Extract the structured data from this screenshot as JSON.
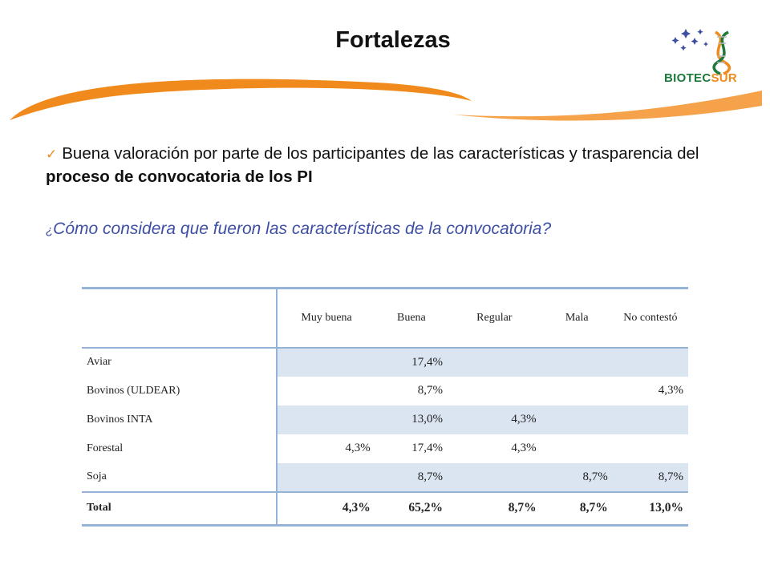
{
  "slide": {
    "title": "Fortalezas",
    "logo_text_part1": "BIOTEC",
    "logo_text_part2": "SUR",
    "bullet_text": "Buena valoración por parte de los participantes de las características y trasparencia del ",
    "bullet_bold": "proceso de convocatoria de los PI",
    "question_mark": "¿",
    "question_text": "Cómo considera que fueron las características de la convocatoria?"
  },
  "table": {
    "columns": [
      "",
      "Muy buena",
      "Buena",
      "Regular",
      "Mala",
      "No contestó"
    ],
    "rows": [
      {
        "label": "Aviar",
        "values": [
          "",
          "17,4%",
          "",
          "",
          ""
        ]
      },
      {
        "label": "Bovinos (ULDEAR)",
        "values": [
          "",
          "8,7%",
          "",
          "",
          "4,3%"
        ]
      },
      {
        "label": "Bovinos INTA",
        "values": [
          "",
          "13,0%",
          "4,3%",
          "",
          ""
        ]
      },
      {
        "label": "Forestal",
        "values": [
          "4,3%",
          "17,4%",
          "4,3%",
          "",
          ""
        ]
      },
      {
        "label": "Soja",
        "values": [
          "",
          "8,7%",
          "",
          "8,7%",
          "8,7%"
        ]
      },
      {
        "label": "Total",
        "values": [
          "4,3%",
          "65,2%",
          "8,7%",
          "8,7%",
          "13,0%"
        ]
      }
    ]
  },
  "colors": {
    "accent_orange": "#f08a1c",
    "question_blue": "#3d4fa3",
    "table_band": "#dbe5f1",
    "table_rule": "#95b3d7",
    "logo_green": "#1e7a3a"
  }
}
